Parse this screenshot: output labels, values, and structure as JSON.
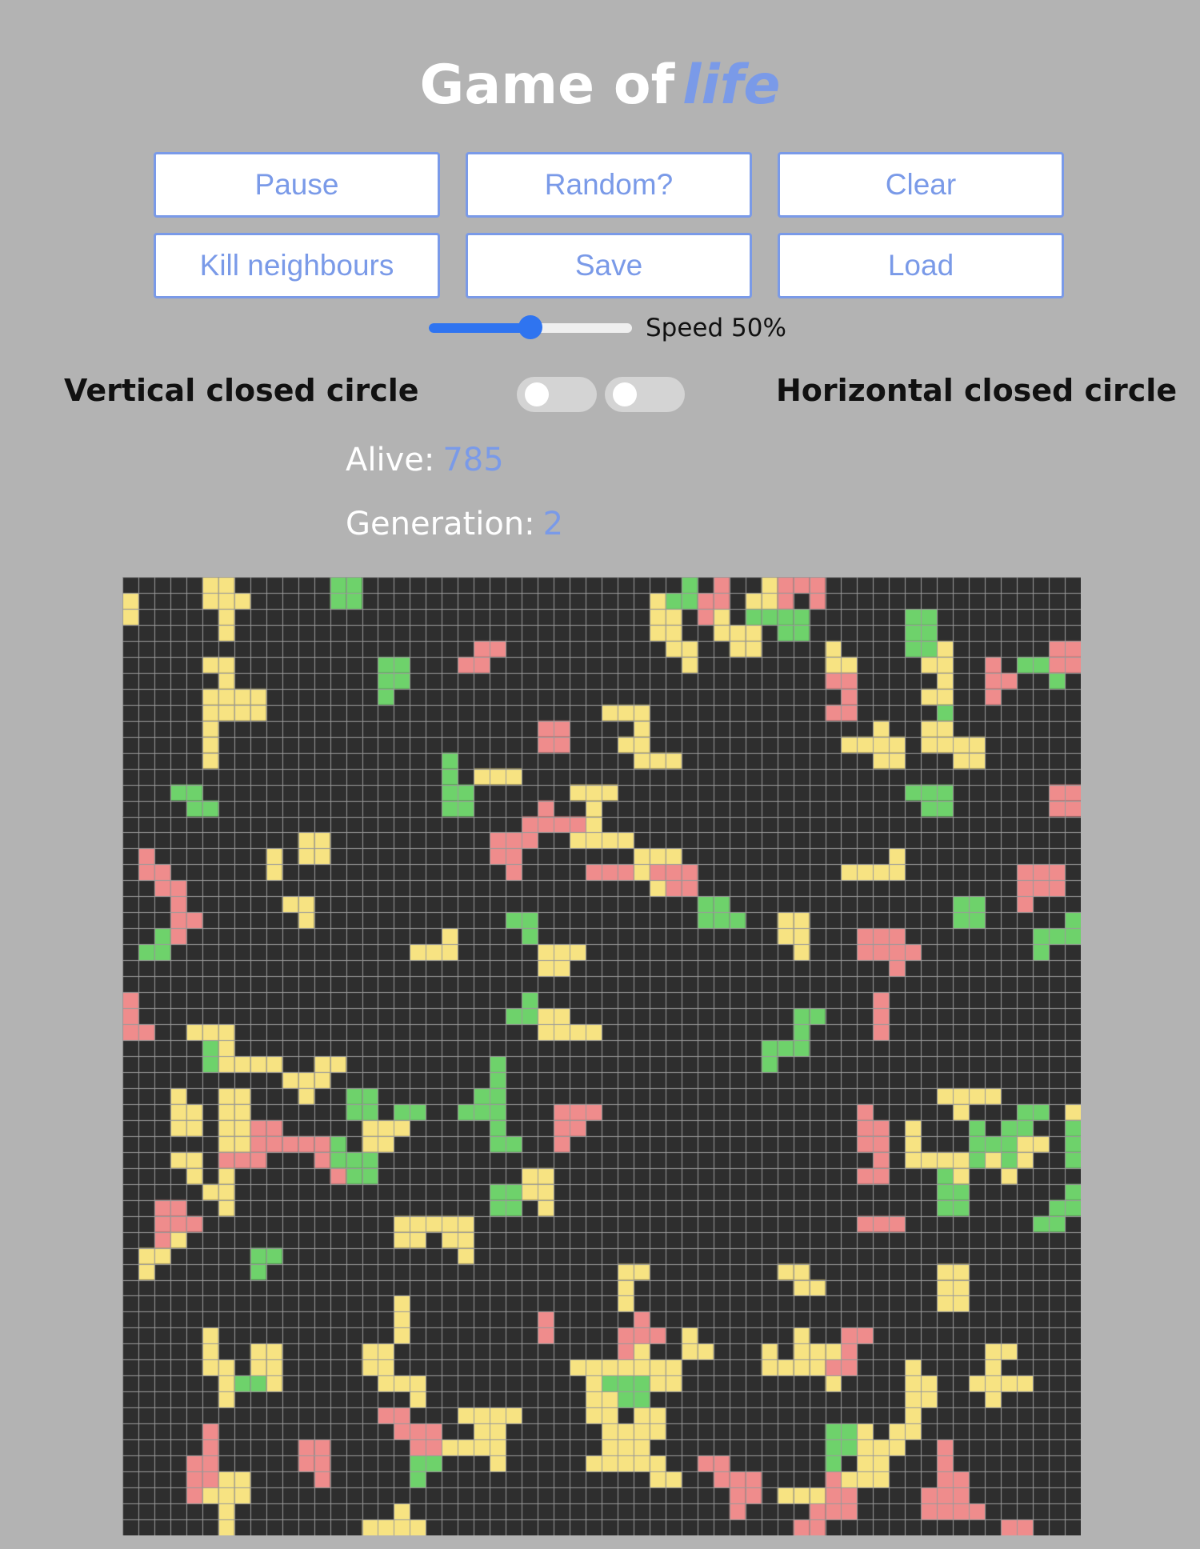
{
  "title": {
    "main": "Game of",
    "accent": "life"
  },
  "buttons": {
    "pause": "Pause",
    "random": "Random?",
    "clear": "Clear",
    "kill_neighbours": "Kill neighbours",
    "save": "Save",
    "load": "Load"
  },
  "speed": {
    "label": "Speed 50%",
    "value_percent": 50
  },
  "toggles": {
    "vertical_label": "Vertical closed circle",
    "horizontal_label": "Horizontal closed circle",
    "vertical_on": false,
    "horizontal_on": false
  },
  "stats": {
    "alive_label": "Alive:",
    "alive_value": "785",
    "generation_label": "Generation:",
    "generation_value": "2"
  },
  "board": {
    "rows": 60,
    "cols": 60,
    "colors": {
      "dead": "#2e2e2e",
      "grid": "#9a9a9a",
      "yellow": "#f7e382",
      "green": "#6ed26b",
      "red": "#ef8c8c"
    }
  }
}
